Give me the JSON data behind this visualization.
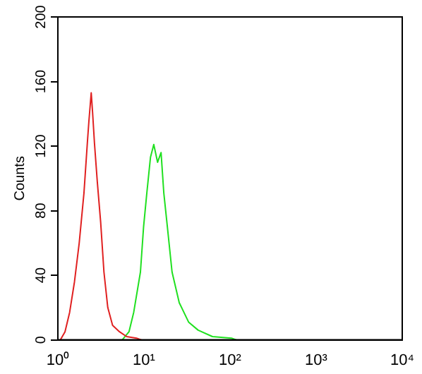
{
  "chart_data": {
    "type": "line",
    "ylabel": "Counts",
    "log": "x",
    "xlim": [
      1,
      10000
    ],
    "xticks": [
      {
        "value": 1,
        "label": "10⁰"
      },
      {
        "value": 10,
        "label": "10¹"
      },
      {
        "value": 100,
        "label": "10²"
      },
      {
        "value": 1000,
        "label": "10³"
      },
      {
        "value": 10000,
        "label": "10⁴"
      }
    ],
    "ylim": [
      0,
      200
    ],
    "yticks": [
      0,
      40,
      80,
      120,
      160,
      200
    ],
    "grid": false,
    "legend": false,
    "marker": "none",
    "line_style": "solid",
    "series": [
      {
        "color": "#e02020",
        "x": [
          1.07,
          1.21,
          1.37,
          1.56,
          1.77,
          2.01,
          2.2,
          2.29,
          2.44,
          2.53,
          2.66,
          2.87,
          3.14,
          3.43,
          3.8,
          4.32,
          5.2,
          6.3,
          8.2,
          9.3
        ],
        "values": [
          0,
          5,
          17,
          36,
          60,
          91,
          122,
          135,
          153,
          141,
          122,
          98,
          73,
          42,
          20,
          9,
          5,
          2,
          1,
          0
        ]
      },
      {
        "color": "#20e020",
        "x": [
          5.6,
          6.7,
          7.6,
          9.1,
          9.9,
          10.8,
          11.9,
          13,
          14.4,
          15.8,
          17,
          18.7,
          21.2,
          25.7,
          33,
          42.6,
          62.5,
          104,
          118
        ],
        "values": [
          0,
          5,
          17,
          42,
          70,
          91,
          113,
          121,
          110,
          116,
          91,
          70,
          42,
          23,
          11,
          6,
          2,
          1,
          0
        ]
      }
    ]
  }
}
